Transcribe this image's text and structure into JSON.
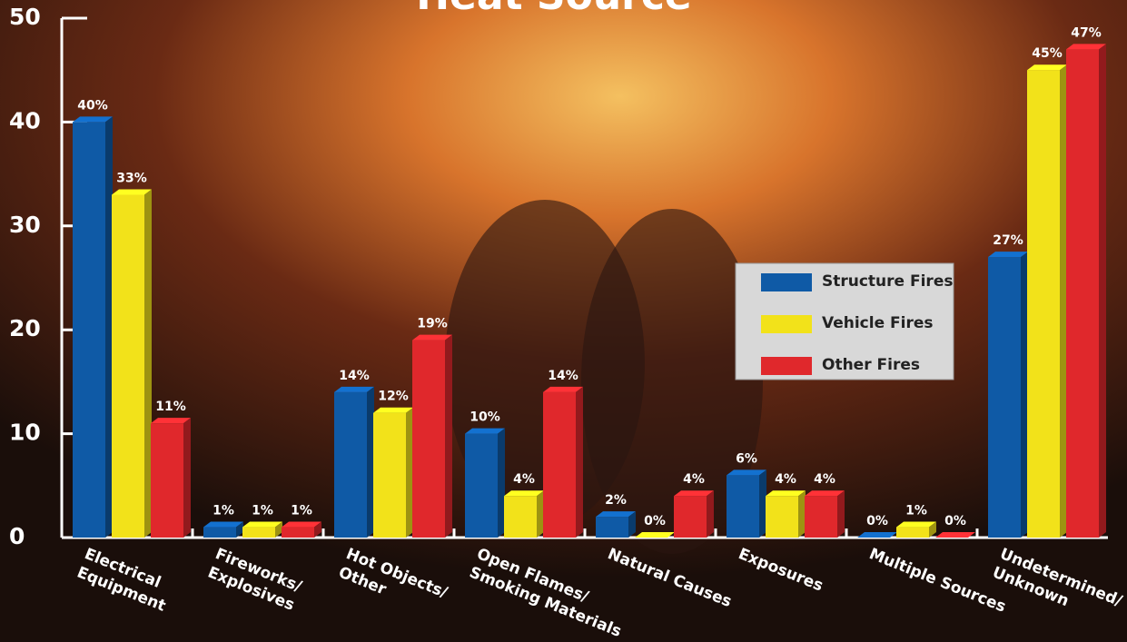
{
  "chart_data": {
    "type": "bar3d",
    "title": "Heat Source",
    "categories": [
      [
        "Electrical",
        "Equipment"
      ],
      [
        "Fireworks/",
        "Explosives"
      ],
      [
        "Hot Objects/",
        "Other"
      ],
      [
        "Open Flames/",
        "Smoking Materials"
      ],
      [
        "Natural Causes"
      ],
      [
        "Exposures"
      ],
      [
        "Multiple Sources"
      ],
      [
        "Undetermined/",
        "Unknown"
      ]
    ],
    "series": [
      {
        "name": "Structure Fires",
        "color": "#0f5aa6",
        "values": [
          40,
          1,
          14,
          10,
          2,
          6,
          0,
          27
        ],
        "value_labels": [
          "40%",
          "1%",
          "14%",
          "10%",
          "2%",
          "6%",
          "0%",
          "27%"
        ]
      },
      {
        "name": "Vehicle Fires",
        "color": "#f2e21a",
        "values": [
          33,
          1,
          12,
          4,
          0,
          4,
          1,
          45
        ],
        "value_labels": [
          "33%",
          "1%",
          "12%",
          "4%",
          "0%",
          "4%",
          "1%",
          "45%"
        ]
      },
      {
        "name": "Other Fires",
        "color": "#e0282c",
        "values": [
          11,
          1,
          19,
          14,
          4,
          4,
          0,
          47
        ],
        "value_labels": [
          "11%",
          "1%",
          "19%",
          "14%",
          "4%",
          "4%",
          "0%",
          "47%"
        ]
      }
    ],
    "ylim": [
      0,
      50
    ],
    "yticks": [
      0,
      10,
      20,
      30,
      40,
      50
    ],
    "legend": "right"
  }
}
